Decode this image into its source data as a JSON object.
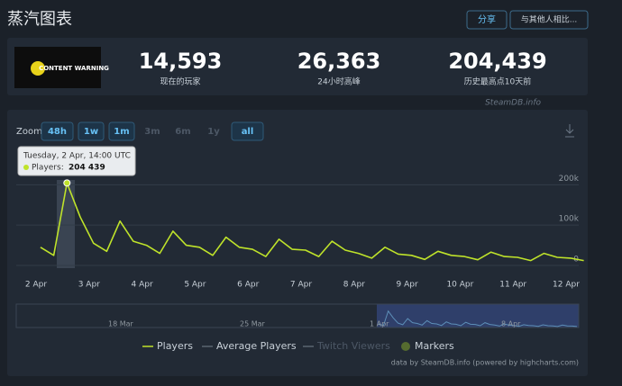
{
  "header": {
    "title": "蒸汽图表",
    "share": "分享",
    "compare": "与其他人相比..."
  },
  "game": {
    "name": "CONTENT WARNING"
  },
  "stats": [
    {
      "value": "14,593",
      "label": "现在的玩家"
    },
    {
      "value": "26,363",
      "label": "24小时高峰"
    },
    {
      "value": "204,439",
      "label": "历史最高点10天前"
    }
  ],
  "source": "SteamDB.info",
  "zoom": {
    "label": "Zoom",
    "buttons": [
      "48h",
      "1w",
      "1m",
      "3m",
      "6m",
      "1y",
      "all"
    ]
  },
  "tooltip": {
    "title": "Tuesday, 2 Apr, 14:00 UTC",
    "label": "Players:",
    "value": "204 439"
  },
  "chart_data": {
    "type": "line",
    "xticks": [
      "2 Apr",
      "3 Apr",
      "4 Apr",
      "5 Apr",
      "6 Apr",
      "7 Apr",
      "8 Apr",
      "9 Apr",
      "10 Apr",
      "11 Apr",
      "12 Apr"
    ],
    "ylim": [
      0,
      290000
    ],
    "yticks": [
      0,
      {
        "value": 100000,
        "label": "100k"
      },
      {
        "value": 200000,
        "label": "200k"
      }
    ],
    "grid": true,
    "series": [
      {
        "name": "Players",
        "color": "#bfe32a",
        "values": [
          45000,
          25000,
          204439,
          120000,
          55000,
          35000,
          110000,
          60000,
          50000,
          30000,
          85000,
          50000,
          45000,
          25000,
          70000,
          45000,
          40000,
          22000,
          65000,
          40000,
          38000,
          22000,
          60000,
          38000,
          30000,
          18000,
          45000,
          28000,
          25000,
          15000,
          35000,
          25000,
          22000,
          14000,
          33000,
          22000,
          20000,
          12000,
          30000,
          20000,
          18000,
          12000
        ]
      }
    ],
    "legend": [
      "Players",
      "Average Players",
      "Twitch Viewers",
      "Markers"
    ],
    "navigator_labels": [
      "18 Mar",
      "25 Mar",
      "1 Apr",
      "8 Apr"
    ],
    "credits": "data by SteamDB.info (powered by highcharts.com)"
  }
}
